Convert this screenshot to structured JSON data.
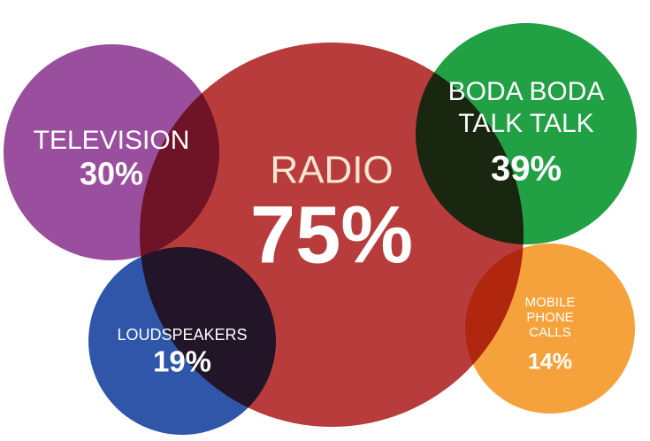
{
  "chart_data": {
    "type": "bubble",
    "categories": [
      [
        "RADIO"
      ],
      [
        "TELEVISION"
      ],
      [
        "BODA BODA",
        "TALK TALK"
      ],
      [
        "LOUDSPEAKERS"
      ],
      [
        "MOBILE",
        "PHONE",
        "CALLS"
      ]
    ],
    "values": [
      75,
      30,
      39,
      19,
      14
    ],
    "value_labels": [
      "75%",
      "30%",
      "39%",
      "19%",
      "14%"
    ],
    "colors": [
      "#b83c3c",
      "#9a4f9e",
      "#22a044",
      "#2f56a8",
      "#f6a23c"
    ]
  }
}
